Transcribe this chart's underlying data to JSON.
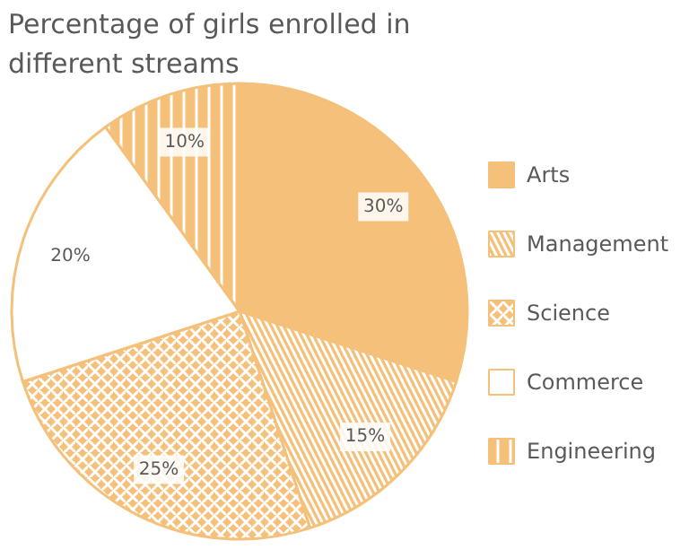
{
  "chart_data": {
    "type": "pie",
    "title": "Percentage of girls enrolled in\ndifferent streams",
    "categories": [
      "Arts",
      "Management",
      "Science",
      "Commerce",
      "Engineering"
    ],
    "values": [
      30,
      15,
      25,
      20,
      10
    ],
    "value_labels": [
      "30%",
      "15%",
      "25%",
      "20%",
      "10%"
    ],
    "colors": [
      "#f4c07a",
      "#f4c07a",
      "#f4c07a",
      "#ffffff",
      "#f4c07a"
    ],
    "legend": "right"
  }
}
